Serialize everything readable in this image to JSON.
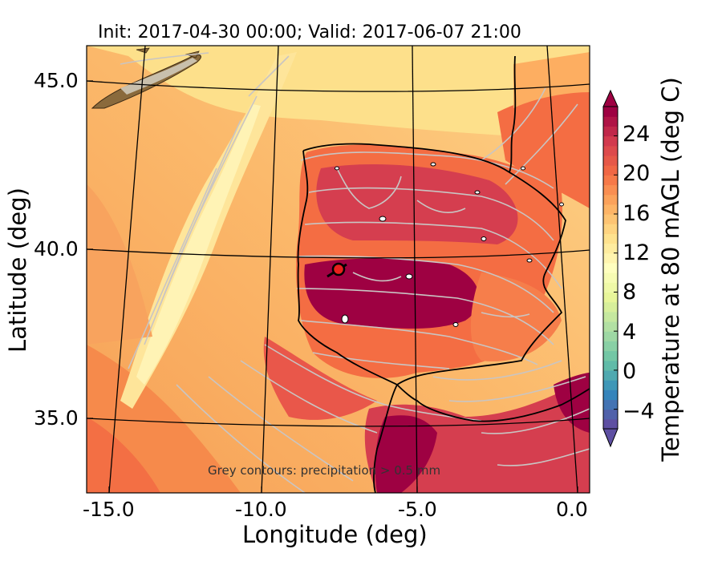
{
  "title": "Init: 2017-04-30 00:00; Valid: 2017-06-07 21:00",
  "map": {
    "xlabel": "Longitude (deg)",
    "ylabel": "Latitude (deg)",
    "lon_ticks": [
      "-15.0",
      "-10.0",
      "-5.0",
      "0.0"
    ],
    "lat_ticks": [
      "45.0",
      "40.0",
      "35.0"
    ],
    "lon_lines": [
      -15,
      -10,
      -5,
      0
    ],
    "lat_lines": [
      45,
      40,
      35
    ],
    "note": "Grey contours: precipitation > 0.5 mm",
    "marker": {
      "lon": -7.6,
      "lat": 39.4,
      "color": "#e8201c"
    }
  },
  "colorbar": {
    "label": "Temperature at 80 mAGL (deg C)",
    "ticks": [
      "−4",
      "0",
      "4",
      "8",
      "12",
      "16",
      "20",
      "24"
    ],
    "min": -6,
    "max": 27,
    "step": 1,
    "extend": "both",
    "colormap": "Spectral_r",
    "colors": [
      "#5e4fa2",
      "#3288bd",
      "#66c2a5",
      "#abdda4",
      "#e6f598",
      "#ffffbf",
      "#fee08b",
      "#fdae61",
      "#f46d43",
      "#d53e4f",
      "#9e0142"
    ]
  }
}
